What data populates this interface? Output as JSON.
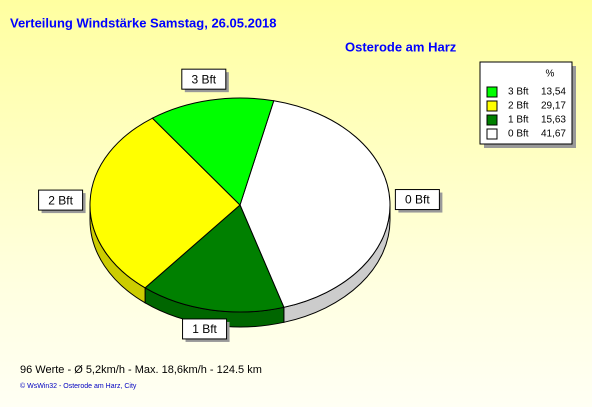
{
  "chart_data": {
    "type": "pie",
    "title": "Verteilung Windstärke  Samstag, 26.05.2018",
    "subtitle": "Osterode am Harz",
    "legend_header": "%",
    "categories": [
      "3 Bft",
      "2 Bft",
      "1 Bft",
      "0 Bft"
    ],
    "values": [
      13.54,
      29.17,
      15.63,
      41.67
    ],
    "value_labels": [
      "13,54",
      "29,17",
      "15,63",
      "41,67"
    ],
    "colors": [
      "#00ff00",
      "#ffff00",
      "#008000",
      "#ffffff"
    ],
    "footer": "96 Werte   -   Ø 5,2km/h  -  Max. 18,6km/h   -   124.5 km",
    "copyright": "© WsWin32  -  Osterode am Harz, City"
  }
}
